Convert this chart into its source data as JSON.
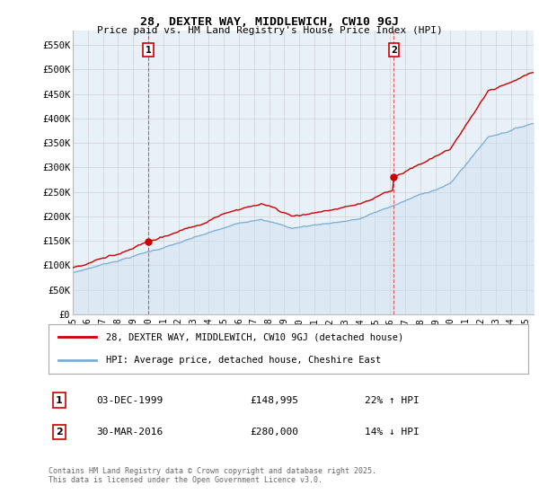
{
  "title_line1": "28, DEXTER WAY, MIDDLEWICH, CW10 9GJ",
  "title_line2": "Price paid vs. HM Land Registry's House Price Index (HPI)",
  "ylabel_ticks": [
    "£0",
    "£50K",
    "£100K",
    "£150K",
    "£200K",
    "£250K",
    "£300K",
    "£350K",
    "£400K",
    "£450K",
    "£500K",
    "£550K"
  ],
  "ytick_values": [
    0,
    50000,
    100000,
    150000,
    200000,
    250000,
    300000,
    350000,
    400000,
    450000,
    500000,
    550000
  ],
  "ylim": [
    0,
    580000
  ],
  "xlim_start": 1995.0,
  "xlim_end": 2025.5,
  "hpi_color": "#7aadd4",
  "hpi_fill_color": "#cce0f0",
  "price_color": "#cc0000",
  "marker1_x": 2000.0,
  "marker1_y": 148995,
  "marker2_x": 2016.25,
  "marker2_y": 280000,
  "marker1_label": "1",
  "marker2_label": "2",
  "transaction1_date": "03-DEC-1999",
  "transaction1_price": "£148,995",
  "transaction1_note": "22% ↑ HPI",
  "transaction2_date": "30-MAR-2016",
  "transaction2_price": "£280,000",
  "transaction2_note": "14% ↓ HPI",
  "legend_line1": "28, DEXTER WAY, MIDDLEWICH, CW10 9GJ (detached house)",
  "legend_line2": "HPI: Average price, detached house, Cheshire East",
  "footer": "Contains HM Land Registry data © Crown copyright and database right 2025.\nThis data is licensed under the Open Government Licence v3.0.",
  "bg_color": "#ffffff",
  "grid_color": "#d0d0d0",
  "plot_bg_color": "#e8f0f8"
}
